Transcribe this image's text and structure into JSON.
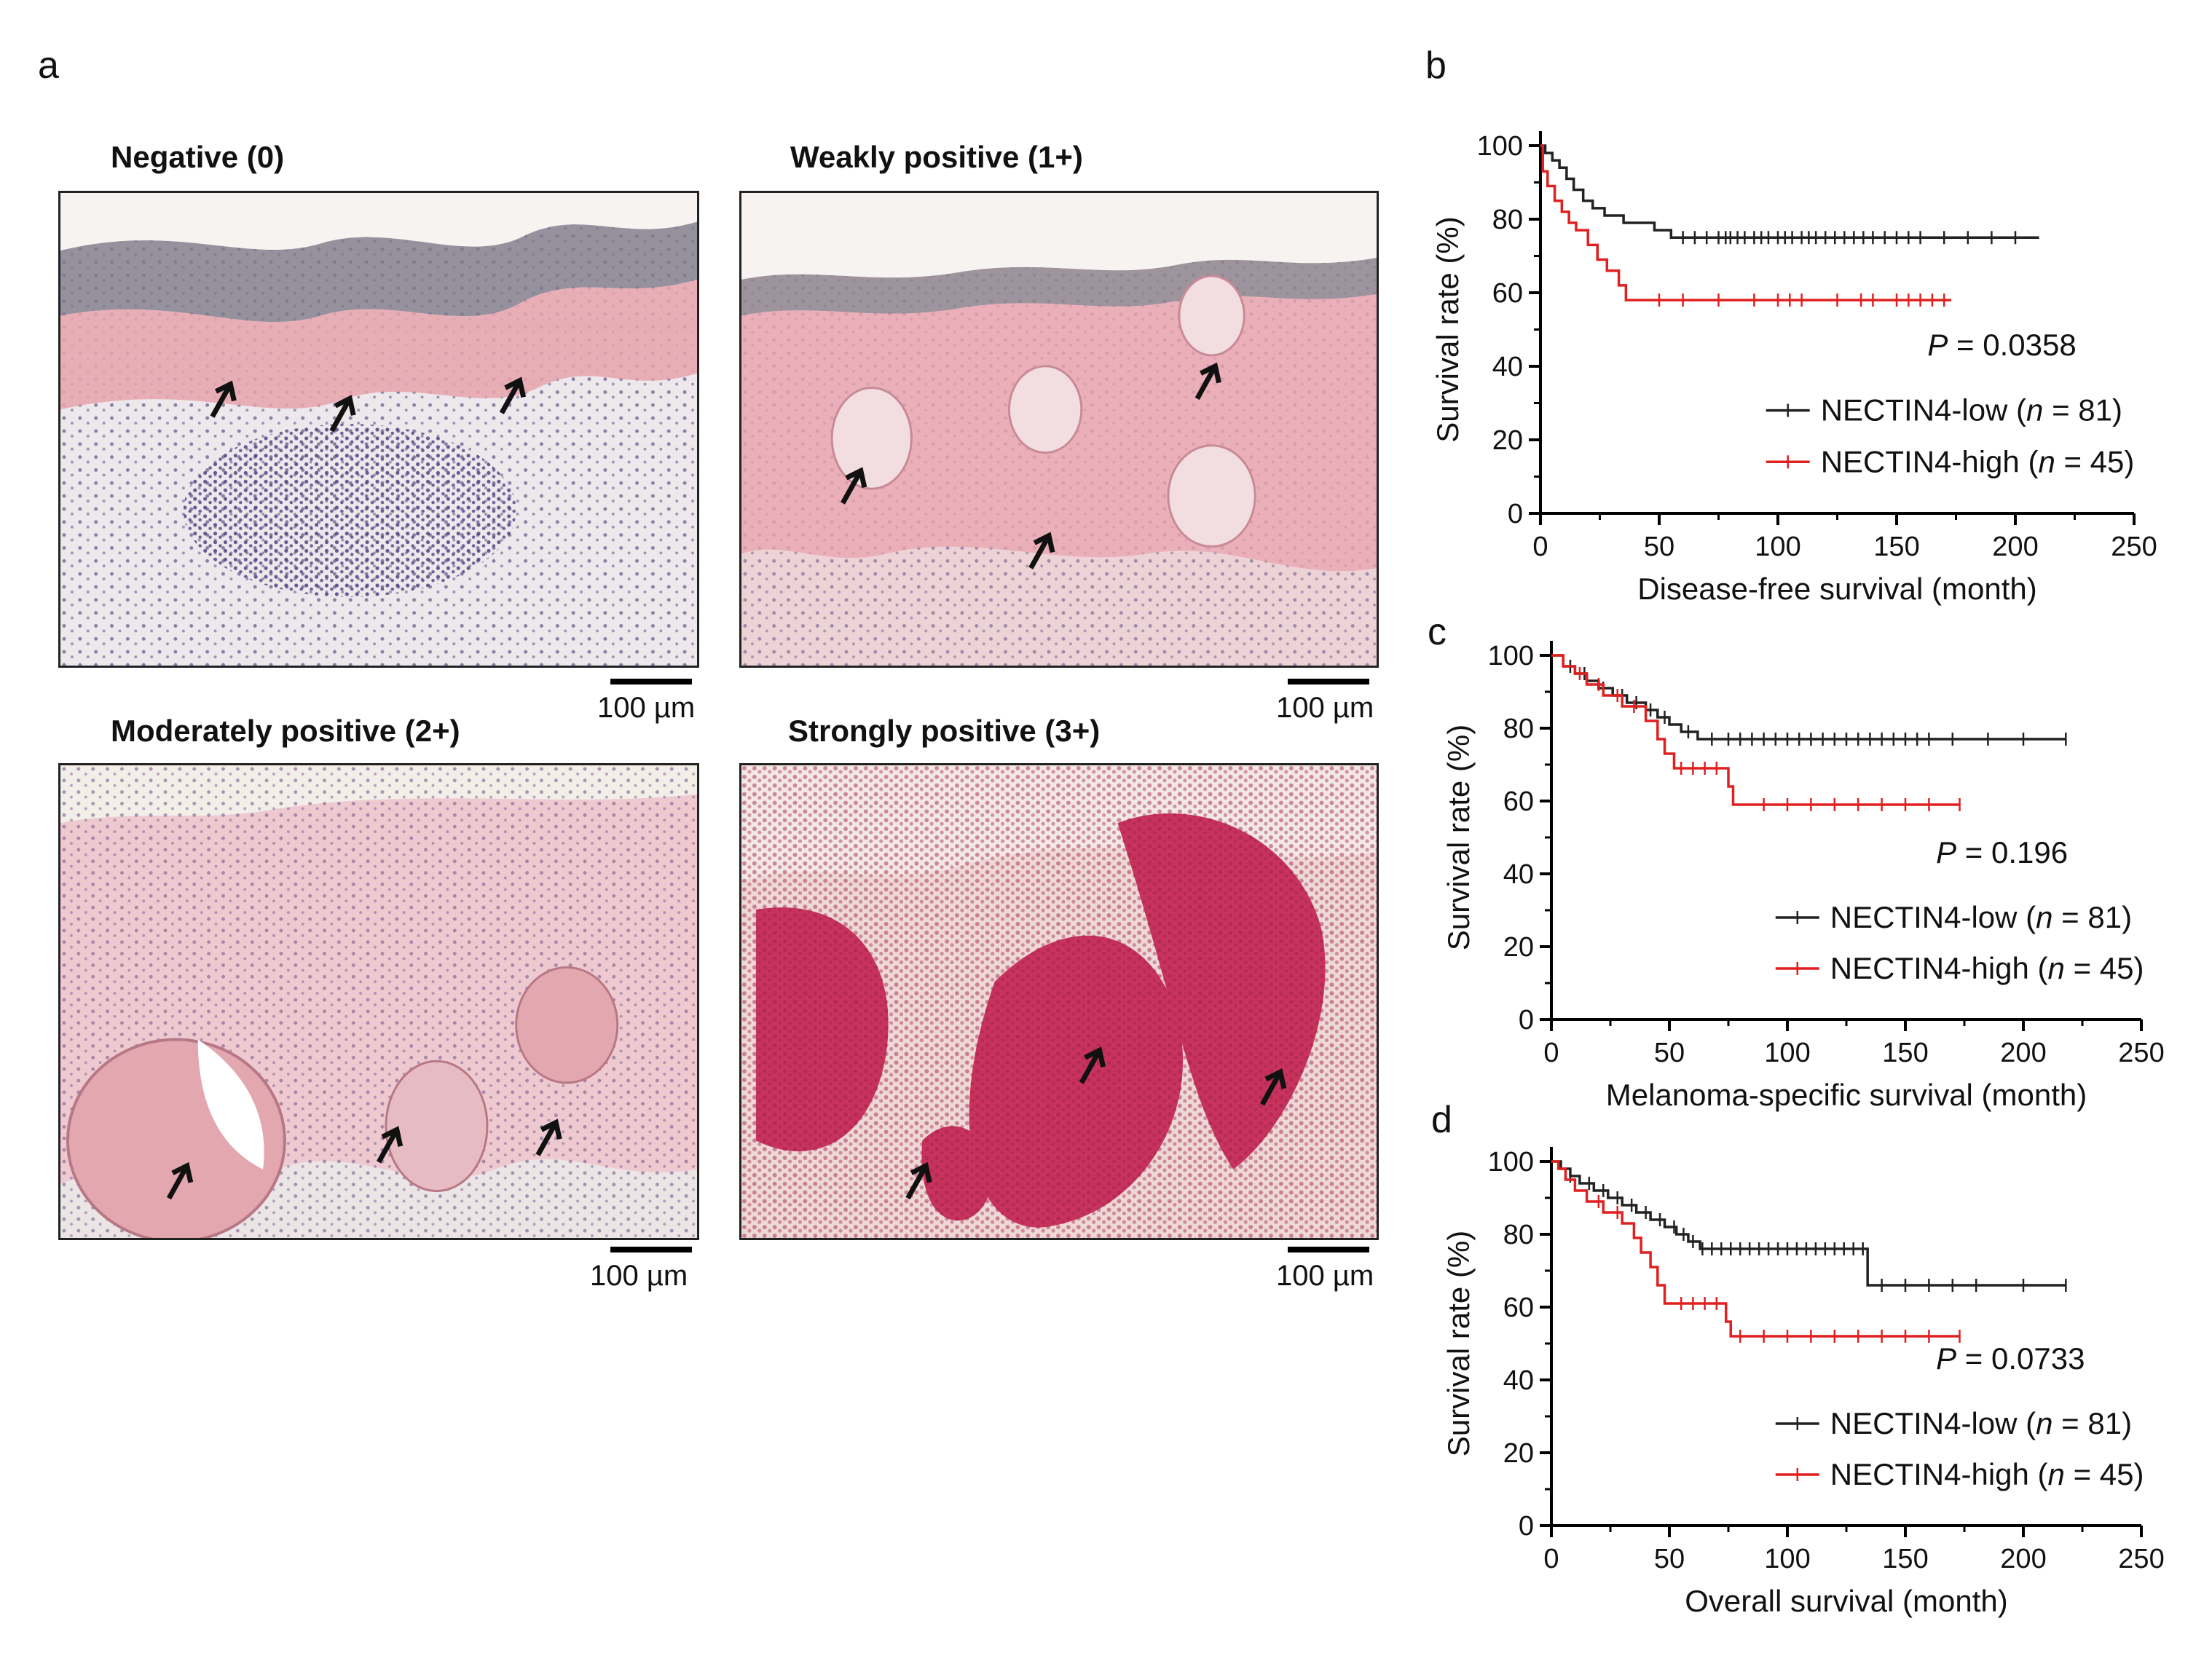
{
  "panel_labels": {
    "a": "a",
    "b": "b",
    "c": "c",
    "d": "d"
  },
  "histology": {
    "scale_bar_text": "100 µm",
    "panels": [
      {
        "title": "Negative (0)",
        "stain_intensity": 0
      },
      {
        "title": "Weakly positive (1+)",
        "stain_intensity": 1
      },
      {
        "title": "Moderately positive (2+)",
        "stain_intensity": 2
      },
      {
        "title": "Strongly positive (3+)",
        "stain_intensity": 3
      }
    ],
    "colors": {
      "epidermis_pink": "#e8a3ad",
      "dermis": "#ece6ea",
      "nuclei": "#6b5c8a",
      "strong_red": "#c8335e",
      "arrow": "#111111"
    }
  },
  "chart_data": [
    {
      "type": "line",
      "title": "",
      "xlabel": "Disease-free survival (month)",
      "ylabel": "Survival rate (%)",
      "xlim": [
        0,
        250
      ],
      "ylim": [
        0,
        100
      ],
      "xticks": [
        0,
        50,
        100,
        150,
        200,
        250
      ],
      "yticks": [
        0,
        20,
        40,
        60,
        80,
        100
      ],
      "pvalue_label": "P",
      "pvalue_text": " = 0.0358",
      "series": [
        {
          "name": "NECTIN4-low",
          "n_label": "n",
          "n_text": " = 81)",
          "color": "#222222",
          "steps": [
            [
              0,
              100
            ],
            [
              2,
              98
            ],
            [
              5,
              96
            ],
            [
              8,
              94
            ],
            [
              11,
              91
            ],
            [
              14,
              88
            ],
            [
              18,
              85
            ],
            [
              22,
              83
            ],
            [
              27,
              81
            ],
            [
              35,
              79
            ],
            [
              48,
              77
            ],
            [
              55,
              75
            ],
            [
              210,
              75
            ]
          ],
          "censors": [
            60,
            65,
            70,
            75,
            78,
            80,
            83,
            86,
            90,
            93,
            96,
            100,
            103,
            106,
            110,
            113,
            116,
            120,
            124,
            128,
            132,
            136,
            140,
            145,
            150,
            155,
            160,
            170,
            180,
            190,
            200
          ]
        },
        {
          "name": "NECTIN4-high",
          "n_label": "n",
          "n_text": " = 45)",
          "color": "#e02020",
          "steps": [
            [
              0,
              100
            ],
            [
              1,
              93
            ],
            [
              3,
              89
            ],
            [
              6,
              85
            ],
            [
              9,
              82
            ],
            [
              12,
              79
            ],
            [
              15,
              77
            ],
            [
              20,
              73
            ],
            [
              24,
              69
            ],
            [
              28,
              66
            ],
            [
              33,
              62
            ],
            [
              36,
              58
            ],
            [
              173,
              58
            ]
          ],
          "censors": [
            50,
            60,
            75,
            90,
            100,
            105,
            110,
            125,
            135,
            140,
            150,
            155,
            160,
            165,
            170
          ]
        }
      ]
    },
    {
      "type": "line",
      "title": "",
      "xlabel": "Melanoma-specific survival (month)",
      "ylabel": "Survival rate (%)",
      "xlim": [
        0,
        250
      ],
      "ylim": [
        0,
        100
      ],
      "xticks": [
        0,
        50,
        100,
        150,
        200,
        250
      ],
      "yticks": [
        0,
        20,
        40,
        60,
        80,
        100
      ],
      "pvalue_label": "P",
      "pvalue_text": " = 0.196",
      "series": [
        {
          "name": "NECTIN4-low",
          "n_label": "n",
          "n_text": " = 81)",
          "color": "#222222",
          "steps": [
            [
              0,
              100
            ],
            [
              5,
              97
            ],
            [
              10,
              95
            ],
            [
              15,
              93
            ],
            [
              20,
              91
            ],
            [
              26,
              89
            ],
            [
              32,
              87
            ],
            [
              40,
              85
            ],
            [
              45,
              83
            ],
            [
              50,
              81
            ],
            [
              55,
              79
            ],
            [
              62,
              77
            ],
            [
              218,
              77
            ]
          ],
          "censors": [
            8,
            14,
            22,
            30,
            36,
            42,
            48,
            58,
            68,
            75,
            80,
            85,
            90,
            95,
            100,
            105,
            110,
            115,
            120,
            125,
            130,
            135,
            140,
            145,
            150,
            155,
            160,
            170,
            185,
            200,
            218
          ]
        },
        {
          "name": "NECTIN4-high",
          "n_label": "n",
          "n_text": " = 45)",
          "color": "#e02020",
          "steps": [
            [
              0,
              100
            ],
            [
              5,
              97
            ],
            [
              10,
              95
            ],
            [
              15,
              92
            ],
            [
              22,
              89
            ],
            [
              30,
              86
            ],
            [
              40,
              82
            ],
            [
              45,
              77
            ],
            [
              48,
              73
            ],
            [
              52,
              69
            ],
            [
              75,
              64
            ],
            [
              77,
              59
            ],
            [
              173,
              59
            ]
          ],
          "censors": [
            12,
            20,
            28,
            35,
            55,
            60,
            65,
            70,
            90,
            100,
            110,
            120,
            130,
            140,
            150,
            160,
            173
          ]
        }
      ]
    },
    {
      "type": "line",
      "title": "",
      "xlabel": "Overall survival (month)",
      "ylabel": "Survival rate (%)",
      "xlim": [
        0,
        250
      ],
      "ylim": [
        0,
        100
      ],
      "xticks": [
        0,
        50,
        100,
        150,
        200,
        250
      ],
      "yticks": [
        0,
        20,
        40,
        60,
        80,
        100
      ],
      "pvalue_label": "P",
      "pvalue_text": " = 0.0733",
      "series": [
        {
          "name": "NECTIN4-low",
          "n_label": "n",
          "n_text": " = 81)",
          "color": "#222222",
          "steps": [
            [
              0,
              100
            ],
            [
              4,
              98
            ],
            [
              8,
              96
            ],
            [
              12,
              94
            ],
            [
              18,
              92
            ],
            [
              24,
              90
            ],
            [
              30,
              88
            ],
            [
              36,
              86
            ],
            [
              42,
              84
            ],
            [
              48,
              82
            ],
            [
              53,
              80
            ],
            [
              58,
              78
            ],
            [
              63,
              76
            ],
            [
              133,
              76
            ],
            [
              134,
              66
            ],
            [
              218,
              66
            ]
          ],
          "censors": [
            8,
            16,
            22,
            28,
            34,
            40,
            46,
            52,
            56,
            60,
            64,
            68,
            72,
            76,
            80,
            84,
            88,
            92,
            96,
            100,
            104,
            108,
            112,
            116,
            120,
            124,
            128,
            132,
            140,
            150,
            160,
            170,
            180,
            200,
            218
          ]
        },
        {
          "name": "NECTIN4-high",
          "n_label": "n",
          "n_text": " = 45)",
          "color": "#e02020",
          "steps": [
            [
              0,
              100
            ],
            [
              3,
              98
            ],
            [
              6,
              95
            ],
            [
              10,
              92
            ],
            [
              15,
              89
            ],
            [
              22,
              86
            ],
            [
              30,
              83
            ],
            [
              35,
              79
            ],
            [
              38,
              75
            ],
            [
              42,
              71
            ],
            [
              45,
              66
            ],
            [
              48,
              61
            ],
            [
              74,
              56
            ],
            [
              76,
              52
            ],
            [
              173,
              52
            ]
          ],
          "censors": [
            20,
            28,
            55,
            60,
            65,
            70,
            80,
            90,
            100,
            110,
            120,
            130,
            140,
            150,
            160,
            173
          ]
        }
      ]
    }
  ]
}
